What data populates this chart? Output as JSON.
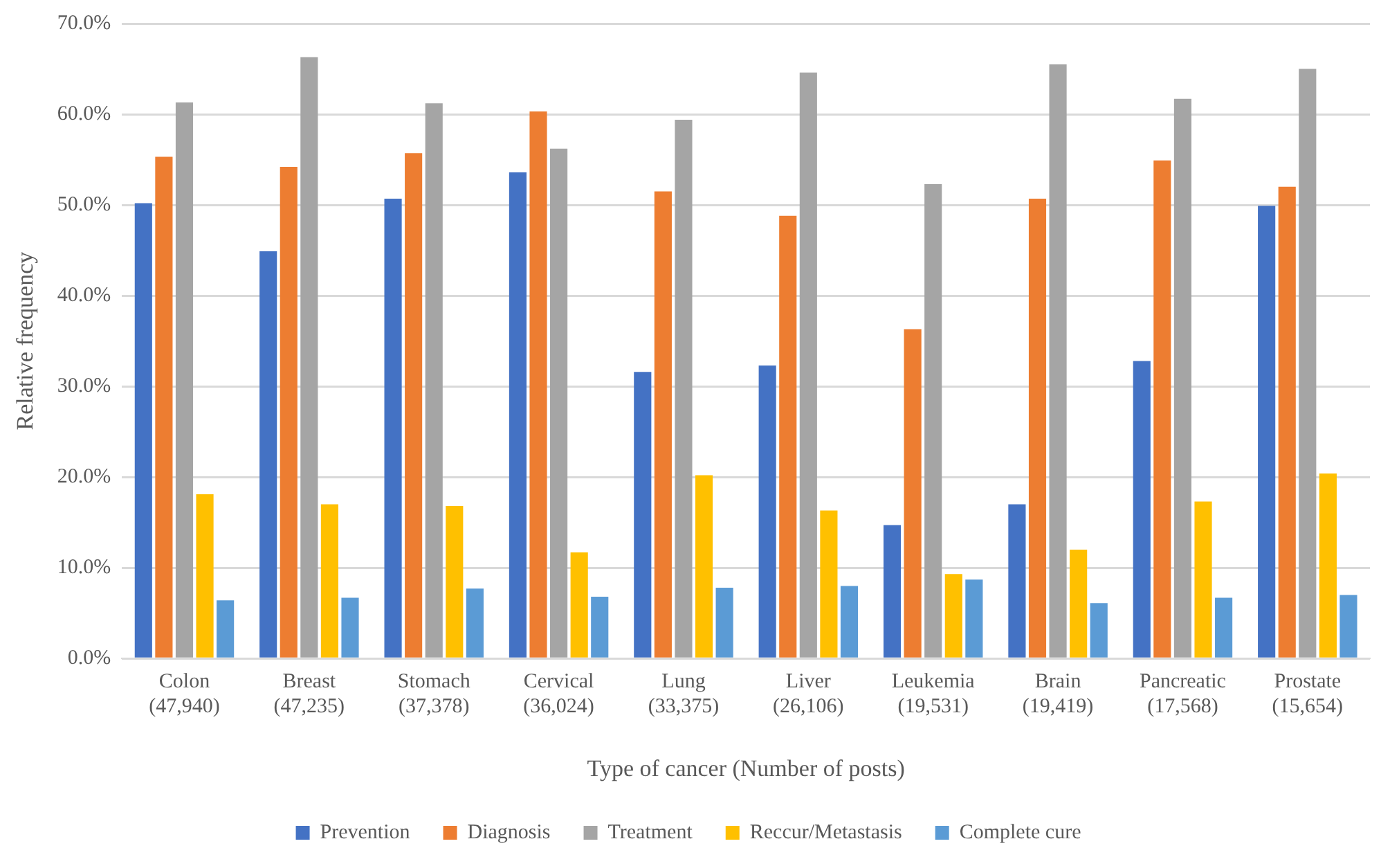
{
  "chart_data": {
    "type": "bar",
    "xlabel": "Type of cancer (Number of posts)",
    "ylabel": "Relative frequency",
    "categories": [
      "Colon\n(47,940)",
      "Breast\n(47,235)",
      "Stomach\n(37,378)",
      "Cervical\n(36,024)",
      "Lung\n(33,375)",
      "Liver\n(26,106)",
      "Leukemia\n(19,531)",
      "Brain\n(19,419)",
      "Pancreatic\n(17,568)",
      "Prostate\n(15,654)"
    ],
    "series": [
      {
        "name": "Prevention",
        "color": "#4472c4",
        "values": [
          50.2,
          44.9,
          50.7,
          53.6,
          31.6,
          32.3,
          14.7,
          17.0,
          32.8,
          49.9
        ]
      },
      {
        "name": "Diagnosis",
        "color": "#ed7d31",
        "values": [
          55.3,
          54.2,
          55.7,
          60.3,
          51.5,
          48.8,
          36.3,
          50.7,
          54.9,
          52.0
        ]
      },
      {
        "name": "Treatment",
        "color": "#a5a5a5",
        "values": [
          61.3,
          66.3,
          61.2,
          56.2,
          59.4,
          64.6,
          52.3,
          65.5,
          61.7,
          65.0
        ]
      },
      {
        "name": "Reccur/Metastasis",
        "color": "#ffc000",
        "values": [
          18.1,
          17.0,
          16.8,
          11.7,
          20.2,
          16.3,
          9.3,
          12.0,
          17.3,
          20.4
        ]
      },
      {
        "name": "Complete cure",
        "color": "#5b9bd5",
        "values": [
          6.4,
          6.7,
          7.7,
          6.8,
          7.8,
          8.0,
          8.7,
          6.1,
          6.7,
          7.0
        ]
      }
    ],
    "ylim": [
      0,
      70
    ],
    "yticks": [
      {
        "value": 0,
        "label": "0.0%"
      },
      {
        "value": 10,
        "label": "10.0%"
      },
      {
        "value": 20,
        "label": "20.0%"
      },
      {
        "value": 30,
        "label": "30.0%"
      },
      {
        "value": 40,
        "label": "40.0%"
      },
      {
        "value": 50,
        "label": "50.0%"
      },
      {
        "value": 60,
        "label": "60.0%"
      },
      {
        "value": 70,
        "label": "70.0%"
      }
    ],
    "grid": "y",
    "legend": "bottom"
  }
}
